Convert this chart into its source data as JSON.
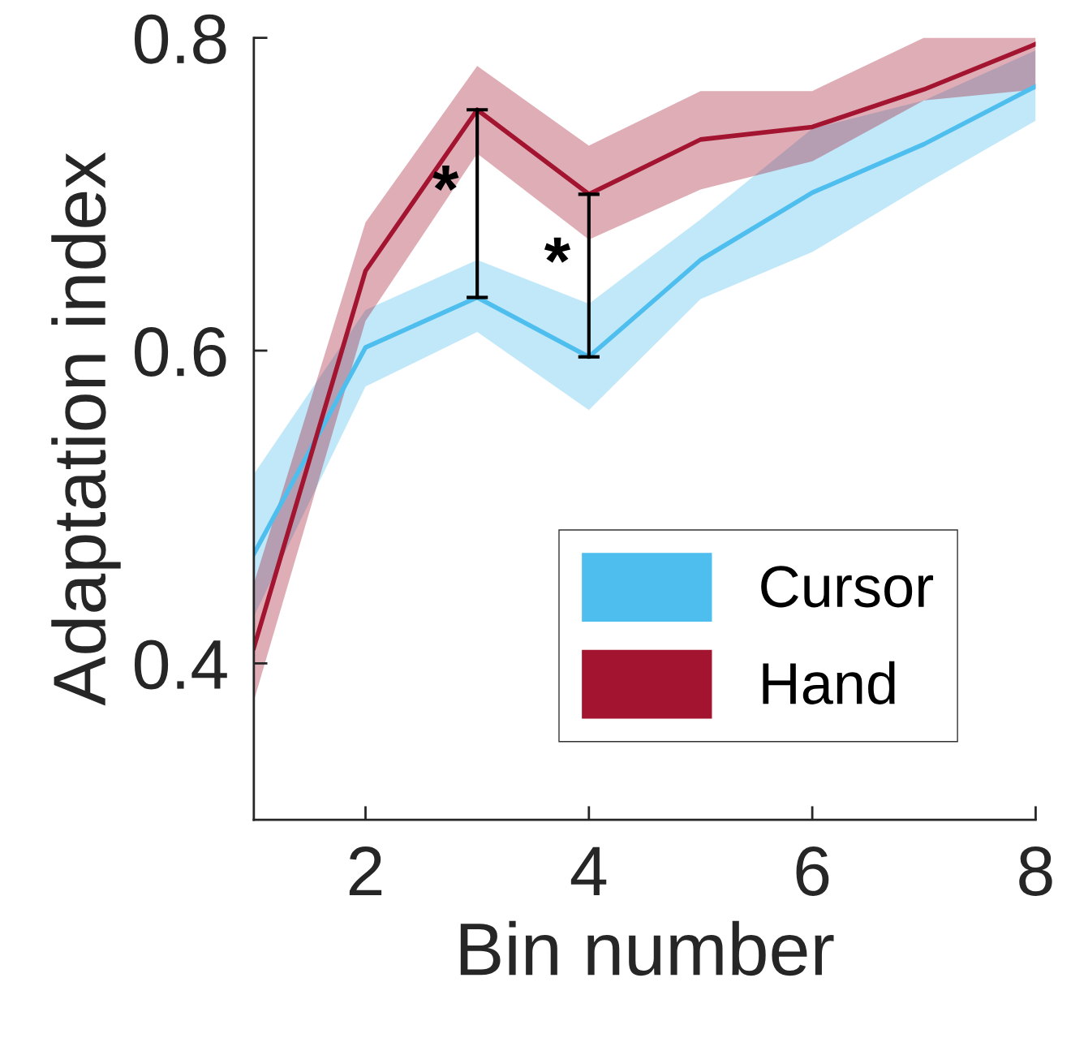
{
  "chart_data": {
    "type": "line",
    "xlabel": "Bin number",
    "ylabel": "Adaptation index",
    "x": [
      1,
      2,
      3,
      4,
      5,
      6,
      7,
      8
    ],
    "series": [
      {
        "name": "Cursor",
        "color": "#4dbeee",
        "values": [
          0.47,
          0.602,
          0.634,
          0.596,
          0.658,
          0.701,
          0.732,
          0.769
        ],
        "lower": [
          0.43,
          0.577,
          0.612,
          0.562,
          0.633,
          0.663,
          0.706,
          0.747
        ],
        "upper": [
          0.521,
          0.626,
          0.658,
          0.63,
          0.684,
          0.742,
          0.76,
          0.792
        ]
      },
      {
        "name": "Hand",
        "color": "#a2142f",
        "values": [
          0.41,
          0.651,
          0.754,
          0.7,
          0.735,
          0.743,
          0.767,
          0.796
        ],
        "lower": [
          0.376,
          0.619,
          0.726,
          0.671,
          0.703,
          0.721,
          0.76,
          0.767
        ],
        "upper": [
          0.451,
          0.682,
          0.782,
          0.731,
          0.766,
          0.766,
          0.8,
          0.8
        ]
      }
    ],
    "annotations": [
      {
        "text": "*",
        "x": 3,
        "y": 0.754
      },
      {
        "text": "*",
        "x": 4,
        "y": 0.7
      }
    ],
    "xlim": [
      1,
      8
    ],
    "xticks": [
      2,
      4,
      6,
      8
    ],
    "ylim": [
      0.3,
      0.8
    ],
    "yticks": [
      0.4,
      0.6,
      0.8
    ],
    "grid": false,
    "legend": "bottom right",
    "marker": "none",
    "line_style": "solid"
  }
}
